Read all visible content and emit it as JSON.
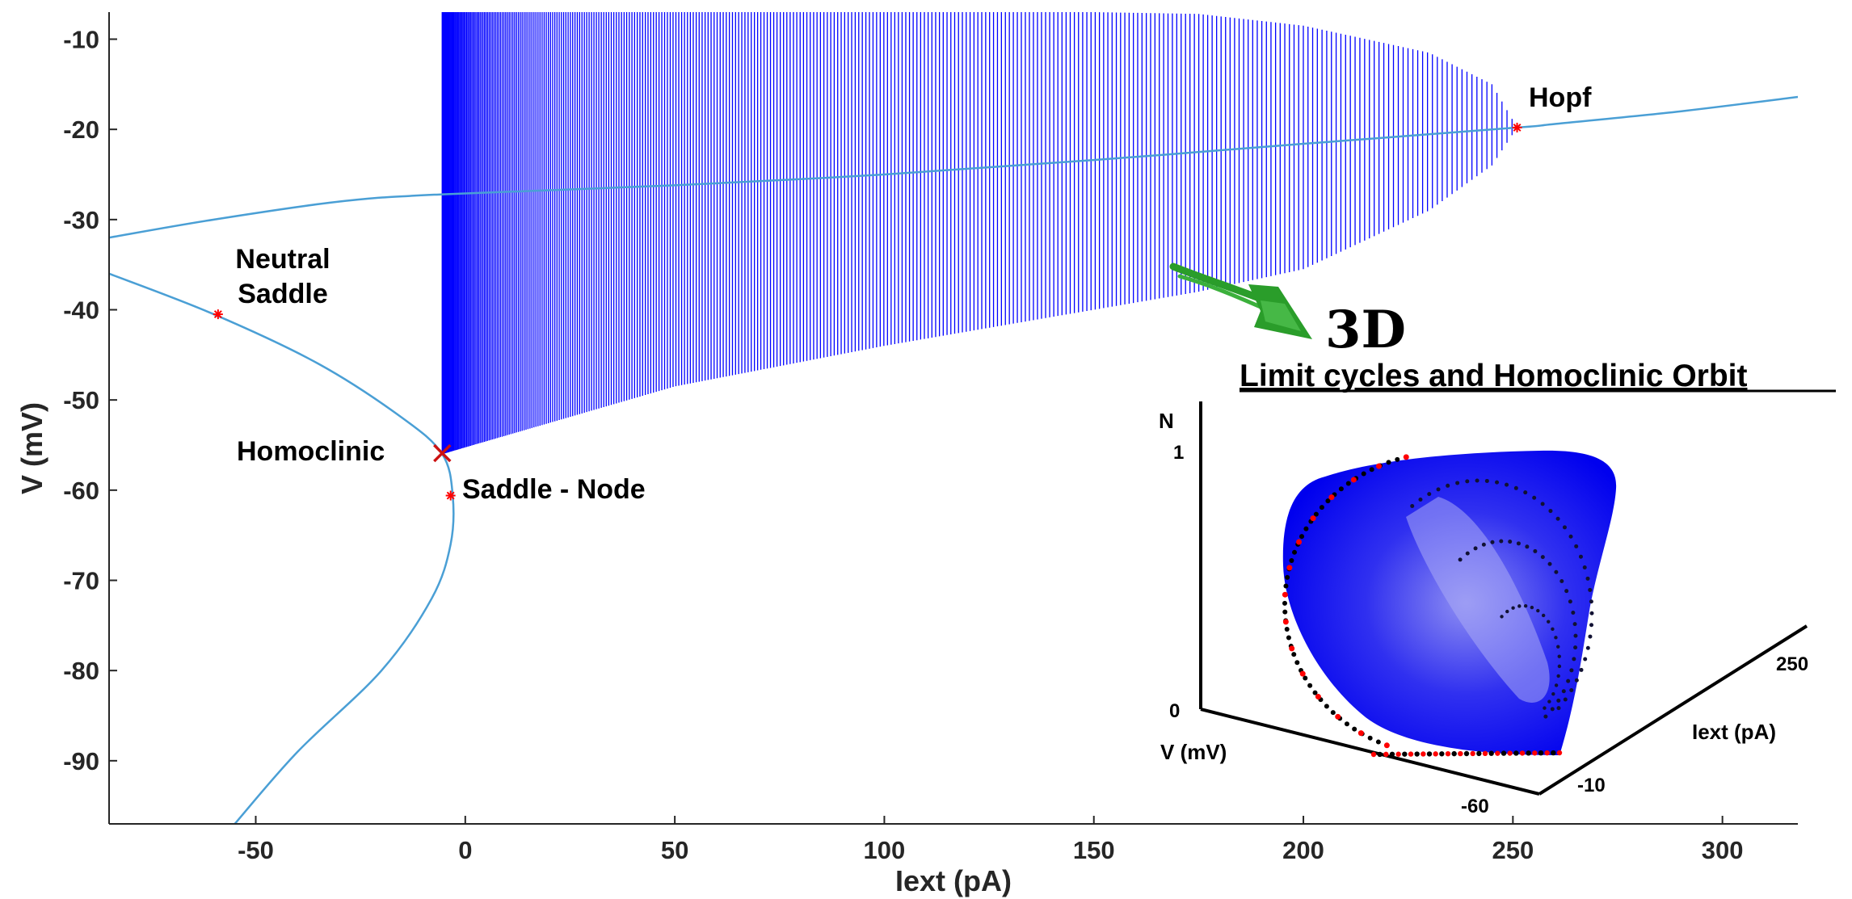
{
  "chart_data": {
    "type": "line",
    "title": "",
    "xlabel": "Iext (pA)",
    "ylabel": "V (mV)",
    "xlim": [
      -85,
      318
    ],
    "ylim": [
      -97,
      -7
    ],
    "x_ticks": [
      -50,
      0,
      50,
      100,
      150,
      200,
      250,
      300
    ],
    "y_ticks": [
      -10,
      -20,
      -30,
      -40,
      -50,
      -60,
      -70,
      -80,
      -90
    ],
    "grid": false,
    "colors": {
      "equilibrium": "#4a9fd5",
      "cycle": "#0000ff",
      "point": "#ff0000",
      "homoclinic": "#cc1111",
      "arrow": "#2a9d2a"
    },
    "series": [
      {
        "kind": "equilibrium-branch",
        "x": [
          -85,
          -60,
          -35,
          -15,
          -5.5,
          -3,
          -3.5,
          -8,
          -20,
          -40,
          -55
        ],
        "y": [
          -36,
          -40.5,
          -46,
          -52,
          -56,
          -60.6,
          -66,
          -72,
          -80,
          -89,
          -97
        ]
      },
      {
        "kind": "equilibrium-branch",
        "x": [
          -85,
          -60,
          -30,
          -5.5,
          50,
          100,
          150,
          200,
          251,
          260,
          290,
          318
        ],
        "y": [
          -32,
          -30,
          -28,
          -27.2,
          -26.2,
          -25.0,
          -23.4,
          -21.6,
          -19.8,
          -19.4,
          -18.0,
          -16.4
        ]
      },
      {
        "kind": "limit-cycle-envelope",
        "x": [
          -5.5,
          50,
          100,
          150,
          175,
          200,
          230,
          245,
          251
        ],
        "upper": [
          -7,
          -7,
          -7,
          -7,
          -7.2,
          -8.5,
          -11.5,
          -15,
          -19.8
        ],
        "lower": [
          -56,
          -48.5,
          -44,
          -40,
          -38,
          -35.5,
          -29,
          -24,
          -19.8
        ]
      }
    ],
    "points": [
      {
        "x": -59,
        "y": -40.5,
        "label": "Neutral\nSaddle",
        "marker": "star"
      },
      {
        "x": -5.5,
        "y": -55.9,
        "label": "Homoclinic",
        "marker": "cross"
      },
      {
        "x": -3.5,
        "y": -60.6,
        "label": "Saddle - Node",
        "marker": "star"
      },
      {
        "x": 251,
        "y": -19.8,
        "label": "Hopf",
        "marker": "star"
      }
    ]
  },
  "annotations": {
    "neutral_saddle_line1": "Neutral",
    "neutral_saddle_line2": "Saddle",
    "homoclinic": "Homoclinic",
    "saddle_node": "Saddle - Node",
    "hopf": "Hopf",
    "three_d": "3D"
  },
  "inset": {
    "title": "Limit cycles and Homoclinic Orbit",
    "z_label": "N",
    "z_ticks": [
      "1",
      "0"
    ],
    "v_label": "V (mV)",
    "v_ticks": [
      "-60",
      "-10"
    ],
    "i_label": "Iext (pA)",
    "i_ticks": [
      "250"
    ]
  }
}
